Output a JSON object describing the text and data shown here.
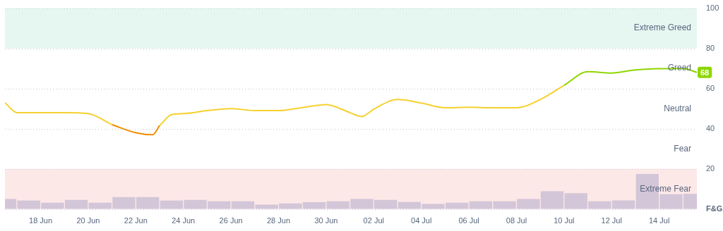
{
  "chart_data": {
    "type": "line",
    "xlim": [
      "--06-16T12:00",
      "--07-15T14:00"
    ],
    "xticks": [
      {
        "value": "--06-18",
        "label": "18 Jun"
      },
      {
        "value": "--06-20",
        "label": "20 Jun"
      },
      {
        "value": "--06-22",
        "label": "22 Jun"
      },
      {
        "value": "--06-24",
        "label": "24 Jun"
      },
      {
        "value": "--06-26",
        "label": "26 Jun"
      },
      {
        "value": "--06-28",
        "label": "28 Jun"
      },
      {
        "value": "--06-30",
        "label": "30 Jun"
      },
      {
        "value": "--07-02",
        "label": "02 Jul"
      },
      {
        "value": "--07-04",
        "label": "04 Jul"
      },
      {
        "value": "--07-06",
        "label": "06 Jul"
      },
      {
        "value": "--07-08",
        "label": "08 Jul"
      },
      {
        "value": "--07-10",
        "label": "10 Jul"
      },
      {
        "value": "--07-12",
        "label": "12 Jul"
      },
      {
        "value": "--07-14",
        "label": "14 Jul"
      }
    ],
    "ylim": [
      0,
      100
    ],
    "yticks": [
      {
        "value": 0,
        "label": "F&G"
      },
      20,
      40,
      60,
      80,
      100
    ],
    "grid": "y",
    "bands": [
      {
        "axis": "y",
        "from": 80,
        "to": 100,
        "label": "Extreme Greed",
        "color": "#e6f7f1"
      },
      {
        "axis": "y",
        "from": 0,
        "to": 20,
        "label": "Extreme Fear",
        "color": "#fde8e8"
      }
    ],
    "annotations": [
      "Greed",
      "Neutral",
      "Fear"
    ],
    "series": [
      {
        "type": "bar",
        "color": "#d3c6d8",
        "x": [
          "--06-16T12:00",
          "--06-17T12:00",
          "--06-18T12:00",
          "--06-19T12:00",
          "--06-20T12:00",
          "--06-21T12:00",
          "--06-22T12:00",
          "--06-23T12:00",
          "--06-24T12:00",
          "--06-25T12:00",
          "--06-26T12:00",
          "--06-27T12:00",
          "--06-28T12:00",
          "--06-29T12:00",
          "--06-30T12:00",
          "--07-01T12:00",
          "--07-02T12:00",
          "--07-03T12:00",
          "--07-04T12:00",
          "--07-05T12:00",
          "--07-06T12:00",
          "--07-07T12:00",
          "--07-08T12:00",
          "--07-09T12:00",
          "--07-10T12:00",
          "--07-11T12:00",
          "--07-12T12:00",
          "--07-13T12:00",
          "--07-14T12:00",
          "--07-15T12:00"
        ],
        "values": [
          5,
          4.2,
          3.2,
          4.6,
          3.2,
          6,
          6,
          4.2,
          4.6,
          3.9,
          3.9,
          2.2,
          2.8,
          3.4,
          3.9,
          5,
          4.6,
          3.5,
          2.6,
          3.2,
          3.9,
          3.9,
          5,
          8.9,
          7.9,
          3.9,
          4.3,
          17.5,
          7.4,
          7.6
        ]
      },
      {
        "color": "#f5d130",
        "x": [
          "--06-16T12:00",
          "--06-17",
          "--06-18",
          "--06-19",
          "--06-20",
          "--06-21",
          "--06-22",
          "--06-22T17:00",
          "--06-23",
          "--06-23T12:00",
          "--06-24",
          "--06-25",
          "--06-26",
          "--06-27",
          "--06-28",
          "--06-29",
          "--06-30",
          "--07-01",
          "--07-01T12:00",
          "--07-02",
          "--07-03",
          "--07-04",
          "--07-05",
          "--07-06",
          "--07-07",
          "--07-08",
          "--07-09",
          "--07-10"
        ],
        "values": [
          53,
          48,
          48,
          48,
          47.5,
          42,
          null,
          null,
          41.5,
          47,
          47.5,
          49,
          50,
          49,
          49,
          50.5,
          52,
          48,
          46,
          49.7,
          54.5,
          52.8,
          50.4,
          50.7,
          50.4,
          50.4,
          54.5,
          61.6
        ]
      },
      {
        "color": "#f08c00",
        "x": [
          "--06-21",
          "--06-22",
          "--06-22T17:00",
          "--06-23"
        ],
        "values": [
          42,
          38,
          37,
          41.5
        ]
      },
      {
        "color": "#8ed600",
        "x": [
          "--07-10",
          "--07-11",
          "--07-12",
          "--07-13",
          "--07-14",
          "--07-15",
          "--07-15T14:00"
        ],
        "values": [
          61.6,
          68.4,
          67.7,
          69.3,
          69.9,
          70,
          68
        ],
        "value_labels": [
          null,
          null,
          null,
          null,
          null,
          null,
          "68"
        ]
      }
    ]
  }
}
